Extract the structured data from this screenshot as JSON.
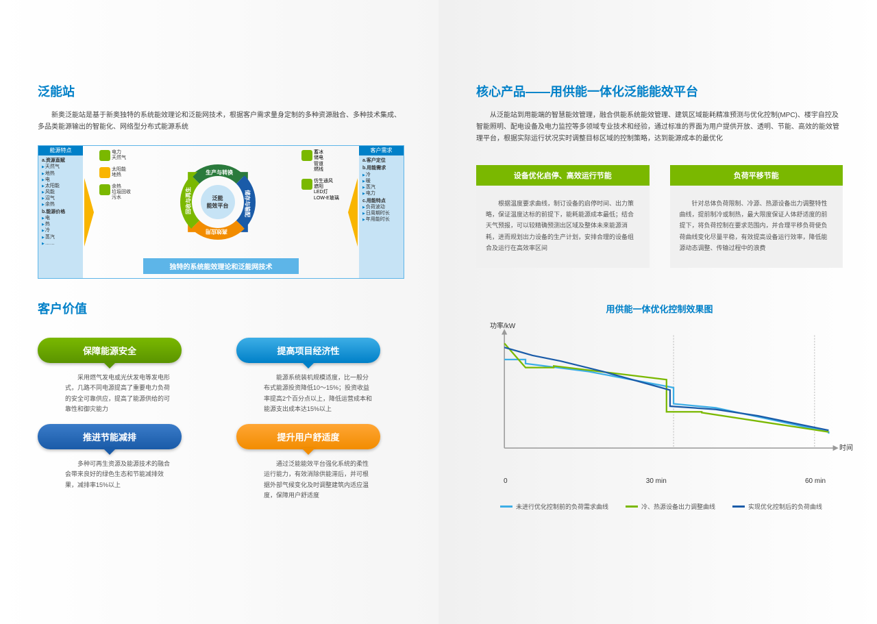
{
  "left": {
    "title1": "泛能站",
    "intro": "新奥泛能站是基于新奥独特的系统能效理论和泛能网技术，根据客户需求量身定制的多种资源融合、多种技术集成、多品类能源输出的智能化、网络型分布式能源系统",
    "diagram": {
      "left_header": "能源特点",
      "left_sub1": "a.资源直赋",
      "left_items1": [
        "天然气",
        "地热",
        "电",
        "太阳能",
        "风能",
        "沼气",
        "余热"
      ],
      "left_sub2": "b.能源价格",
      "left_items2": [
        "电",
        "热",
        "冷",
        "蒸汽",
        "……"
      ],
      "right_header": "客户需求",
      "right_sub1": "a.客户定位",
      "right_sub2": "b.用能需求",
      "right_items2": [
        "冷",
        "暖",
        "蒸汽",
        "电力"
      ],
      "right_sub3": "c.用能特点",
      "right_items3": [
        "负荷波动",
        "日周期时长",
        "年用能时长"
      ],
      "center_label": "泛能\n能效平台",
      "arc1": "生产与转换",
      "arc2": "储存与输配",
      "arc3": "高效应用",
      "arc4": "回收与再生",
      "arc_colors": {
        "arc1": "#2a7a3c",
        "arc2": "#1a5ba8",
        "arc3": "#f28c00",
        "arc4": "#7ab800"
      },
      "icons_left": [
        {
          "label": "电力\n天然气",
          "color": "#7ab800"
        },
        {
          "label": "太阳能\n地热",
          "color": "#f9b500"
        },
        {
          "label": "余热\n垃圾回收\n污水",
          "color": "#7ab800"
        }
      ],
      "icons_right": [
        {
          "label": "蓄冰\n储电\n管道\n燃线",
          "color": "#7ab800"
        },
        {
          "label": "仿生通风\n遮阳\nLED灯\nLOW-E玻璃",
          "color": "#7ab800"
        }
      ],
      "footer": "独特的系统能效理论和泛能网技术"
    },
    "title2": "客户价值",
    "pills": [
      {
        "label": "保障能源安全",
        "cls": "pill-green",
        "text": "采用燃气发电或光伏发电等发电形式，几路不同电源提高了重要电力负荷的安全可靠供应，提高了能源供给的可靠性和御灾能力"
      },
      {
        "label": "提高项目经济性",
        "cls": "pill-blue",
        "text": "能源系统装机规模适度，比一般分布式能源投资降低10～15%；投资收益率提高2个百分点以上，降低运营成本和能源支出成本达15%以上"
      },
      {
        "label": "推进节能减排",
        "cls": "pill-darkblue",
        "text": "多种可再生资源及能源技术的融合会带来良好的绿色生态和节能减排效果，减排率15%以上"
      },
      {
        "label": "提升用户舒适度",
        "cls": "pill-orange",
        "text": "通过泛能能效平台强化系统的柔性运行能力，有效消除供能滞后，并可根据外部气候变化及时调整建筑内适应温度，保障用户舒适度"
      }
    ]
  },
  "right": {
    "title": "核心产品——用供能一体化泛能能效平台",
    "intro": "从泛能站到用能端的智慧能效管理，融合供能系统能效管理、建筑区域能耗精准预测与优化控制(MPC)、楼宇自控及智能照明、配电设备及电力监控等多领域专业技术和经验，通过标准的界面为用户提供开放、透明、节能、高效的能效管理平台，根据实际运行状况实时调整目标区域的控制策略，达到能源成本的最优化",
    "features": [
      {
        "header": "设备优化启停、高效运行节能",
        "body": "根据温度要求曲线，制订设备的启停时间、出力策略，保证温度达标的前提下，能耗能源成本最低；结合天气预报，可以较精确预测出区域及整体未来能源消耗，进而规划出力设备的生产计划，安排合理的设备组合及运行在高效率区间"
      },
      {
        "header": "负荷平移节能",
        "body": "针对总体负荷限制、冷源、热源设备出力调整特性曲线，提前制冷或制热，最大限度保证人体舒适度的前提下，将负荷控制在要求范围内，并合理平移负荷使负荷曲线变化尽量平稳，有效提高设备运行效率，降低能源动态调整、传输过程中的浪费"
      }
    ],
    "chart": {
      "title": "用供能一体优化控制效果图",
      "ylabel": "功率/kW",
      "xlabel": "时间",
      "xticks": [
        "0",
        "30 min",
        "60 min"
      ],
      "colors": {
        "cyan": "#3daee6",
        "green": "#7ab800",
        "navy": "#1a5ba8",
        "axis": "#999",
        "grid": "#bbb"
      },
      "series": {
        "cyan": [
          [
            0,
            110
          ],
          [
            30,
            110
          ],
          [
            30,
            105
          ],
          [
            120,
            95
          ],
          [
            240,
            75
          ],
          [
            240,
            55
          ],
          [
            300,
            50
          ],
          [
            460,
            20
          ],
          [
            460,
            18
          ]
        ],
        "green": [
          [
            0,
            130
          ],
          [
            30,
            100
          ],
          [
            70,
            100
          ],
          [
            70,
            102
          ],
          [
            230,
            85
          ],
          [
            230,
            45
          ],
          [
            280,
            45
          ],
          [
            280,
            44
          ],
          [
            460,
            20
          ]
        ],
        "navy": [
          [
            0,
            125
          ],
          [
            40,
            115
          ],
          [
            80,
            108
          ],
          [
            140,
            95
          ],
          [
            235,
            72
          ],
          [
            235,
            52
          ],
          [
            300,
            48
          ],
          [
            360,
            40
          ],
          [
            460,
            22
          ]
        ]
      },
      "dashed_x": [
        240,
        440
      ],
      "legend": [
        {
          "color": "#3daee6",
          "label": "未进行优化控制前的负荷需求曲线"
        },
        {
          "color": "#7ab800",
          "label": "冷、热源设备出力调整曲线"
        },
        {
          "color": "#1a5ba8",
          "label": "实现优化控制后的负荷曲线"
        }
      ]
    }
  }
}
